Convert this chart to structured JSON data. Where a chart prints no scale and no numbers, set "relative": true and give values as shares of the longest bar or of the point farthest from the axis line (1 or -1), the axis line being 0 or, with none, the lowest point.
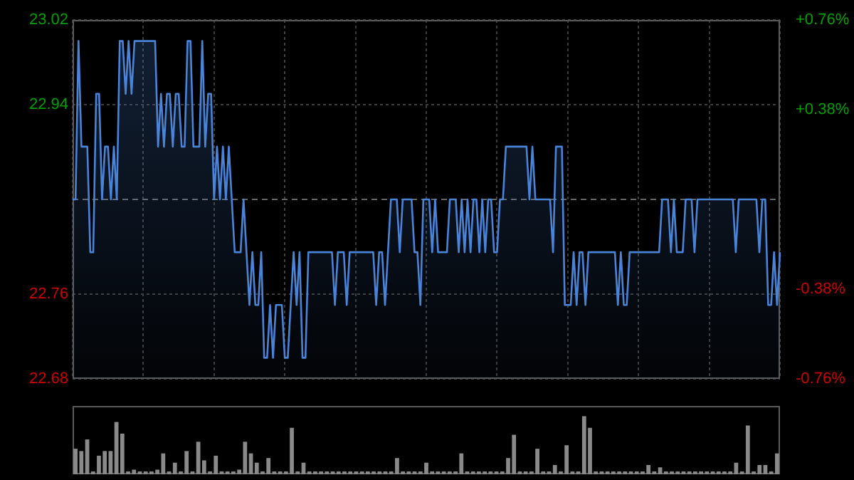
{
  "chart_data": [
    {
      "type": "area",
      "categories": [
        null,
        null,
        null,
        null,
        null,
        null,
        null,
        null,
        null,
        null,
        null,
        null,
        null,
        null,
        null,
        null,
        null,
        null,
        null,
        null,
        null,
        null,
        null,
        null,
        null,
        null,
        null,
        null,
        null,
        null,
        null,
        null,
        null,
        null,
        null,
        null,
        null,
        null,
        null,
        null,
        null,
        null,
        null,
        null,
        null,
        null,
        null,
        null,
        null,
        null,
        null,
        null,
        null,
        null,
        null,
        null,
        null,
        null,
        null,
        null,
        null,
        null,
        null,
        null,
        null,
        null,
        null,
        null,
        null,
        null,
        null,
        null,
        null,
        null,
        null,
        null,
        null,
        null,
        null,
        null,
        null,
        null,
        null,
        null,
        null,
        null,
        null,
        null,
        null,
        null,
        null,
        null,
        null,
        null,
        null,
        null,
        null,
        null,
        null,
        null,
        null,
        null,
        null,
        null,
        null,
        null,
        null,
        null,
        null,
        null,
        null,
        null,
        null,
        null,
        null,
        null,
        null,
        null,
        null,
        null,
        null,
        null,
        null,
        null,
        null,
        null,
        null,
        null,
        null,
        null,
        null,
        null,
        null,
        null,
        null,
        null,
        null,
        null,
        null,
        null,
        null,
        null,
        null,
        null,
        null,
        null,
        null,
        null,
        null,
        null,
        null,
        null,
        null,
        null,
        null,
        null,
        null,
        null,
        null,
        null,
        null,
        null,
        null,
        null,
        null,
        null,
        null,
        null,
        null,
        null,
        null,
        null,
        null,
        null,
        null,
        null,
        null,
        null,
        null,
        null,
        null,
        null,
        null,
        null,
        null,
        null,
        null,
        null,
        null,
        null,
        null,
        null,
        null,
        null,
        null,
        null,
        null,
        null,
        null,
        null,
        null,
        null,
        null,
        null,
        null,
        null,
        null,
        null,
        null,
        null,
        null,
        null,
        null,
        null,
        null,
        null,
        null,
        null,
        null,
        null,
        null,
        null,
        null,
        null,
        null,
        null,
        null,
        null,
        null,
        null,
        null,
        null,
        null,
        null,
        null,
        null,
        null,
        null,
        null,
        null,
        null
      ],
      "ylim": [
        22.68,
        23.02
      ],
      "yticks": [
        22.68,
        22.76,
        22.94,
        23.02
      ],
      "y2lim": [
        -0.76,
        0.76
      ],
      "y2ticks": [
        {
          "value": -0.76,
          "label": "-0.76%"
        },
        {
          "value": -0.38,
          "label": "-0.38%"
        },
        {
          "value": 0.38,
          "label": "+0.38%"
        },
        {
          "value": 0.76,
          "label": "+0.76%"
        }
      ],
      "grid": true,
      "legend": false,
      "tick_labels": "y",
      "marker": "none",
      "line_style": "solid",
      "ref_lines": [
        {
          "axis": "y",
          "value": 22.85,
          "line_style": "dashed",
          "color": "#666666"
        }
      ],
      "series": [
        {
          "color": "#4a84d8",
          "values": [
            22.85,
            22.85,
            23.0,
            22.9,
            22.9,
            22.9,
            22.8,
            22.8,
            22.95,
            22.95,
            22.85,
            22.9,
            22.9,
            22.85,
            22.9,
            22.85,
            23.0,
            23.0,
            22.95,
            23.0,
            22.95,
            23.0,
            23.0,
            23.0,
            23.0,
            23.0,
            23.0,
            23.0,
            23.0,
            22.9,
            22.95,
            22.9,
            22.95,
            22.95,
            22.9,
            22.95,
            22.95,
            22.9,
            22.9,
            23.0,
            23.0,
            22.9,
            22.9,
            22.9,
            23.0,
            22.9,
            22.95,
            22.95,
            22.85,
            22.9,
            22.85,
            22.9,
            22.85,
            22.9,
            22.85,
            22.8,
            22.8,
            22.8,
            22.85,
            22.8,
            22.75,
            22.8,
            22.75,
            22.75,
            22.8,
            22.7,
            22.7,
            22.75,
            22.7,
            22.75,
            22.75,
            22.75,
            22.7,
            22.7,
            22.75,
            22.8,
            22.75,
            22.8,
            22.7,
            22.7,
            22.8,
            22.8,
            22.8,
            22.8,
            22.8,
            22.8,
            22.8,
            22.8,
            22.8,
            22.75,
            22.8,
            22.8,
            22.8,
            22.75,
            22.8,
            22.8,
            22.8,
            22.8,
            22.8,
            22.8,
            22.8,
            22.8,
            22.8,
            22.75,
            22.8,
            22.8,
            22.75,
            22.8,
            22.85,
            22.85,
            22.85,
            22.8,
            22.85,
            22.85,
            22.85,
            22.85,
            22.8,
            22.8,
            22.75,
            22.85,
            22.85,
            22.85,
            22.8,
            22.85,
            22.8,
            22.8,
            22.8,
            22.8,
            22.85,
            22.85,
            22.85,
            22.8,
            22.85,
            22.8,
            22.85,
            22.8,
            22.85,
            22.85,
            22.8,
            22.85,
            22.8,
            22.85,
            22.85,
            22.8,
            22.8,
            22.85,
            22.85,
            22.9,
            22.9,
            22.9,
            22.9,
            22.9,
            22.9,
            22.9,
            22.9,
            22.85,
            22.9,
            22.85,
            22.85,
            22.85,
            22.85,
            22.85,
            22.85,
            22.8,
            22.9,
            22.9,
            22.9,
            22.75,
            22.75,
            22.75,
            22.8,
            22.75,
            22.8,
            22.8,
            22.75,
            22.8,
            22.8,
            22.8,
            22.8,
            22.8,
            22.8,
            22.8,
            22.8,
            22.8,
            22.8,
            22.75,
            22.8,
            22.75,
            22.75,
            22.8,
            22.8,
            22.8,
            22.8,
            22.8,
            22.8,
            22.8,
            22.8,
            22.8,
            22.8,
            22.8,
            22.85,
            22.85,
            22.85,
            22.8,
            22.85,
            22.8,
            22.8,
            22.8,
            22.85,
            22.85,
            22.85,
            22.8,
            22.85,
            22.85,
            22.85,
            22.85,
            22.85,
            22.85,
            22.85,
            22.85,
            22.85,
            22.85,
            22.85,
            22.85,
            22.85,
            22.8,
            22.85,
            22.85,
            22.85,
            22.85,
            22.85,
            22.85,
            22.85,
            22.8,
            22.85,
            22.85,
            22.75,
            22.75,
            22.8,
            22.75,
            22.8
          ]
        }
      ]
    },
    {
      "type": "bar",
      "relative": true,
      "legend": false,
      "tick_labels": false,
      "grid": false,
      "categories": [
        null,
        null,
        null,
        null,
        null,
        null,
        null,
        null,
        null,
        null,
        null,
        null,
        null,
        null,
        null,
        null,
        null,
        null,
        null,
        null,
        null,
        null,
        null,
        null,
        null,
        null,
        null,
        null,
        null,
        null,
        null,
        null,
        null,
        null,
        null,
        null,
        null,
        null,
        null,
        null,
        null,
        null,
        null,
        null,
        null,
        null,
        null,
        null,
        null,
        null,
        null,
        null,
        null,
        null,
        null,
        null,
        null,
        null,
        null,
        null,
        null,
        null,
        null,
        null,
        null,
        null,
        null,
        null,
        null,
        null,
        null,
        null,
        null,
        null,
        null,
        null,
        null,
        null,
        null,
        null,
        null,
        null,
        null,
        null,
        null,
        null,
        null,
        null,
        null,
        null,
        null,
        null,
        null,
        null,
        null,
        null,
        null,
        null,
        null,
        null,
        null,
        null,
        null,
        null,
        null,
        null,
        null,
        null,
        null,
        null,
        null,
        null,
        null,
        null,
        null,
        null,
        null,
        null,
        null,
        null,
        null
      ],
      "series": [
        {
          "color": "#8a8a8a",
          "values": [
            0.44,
            0.4,
            0.6,
            0.05,
            0.32,
            0.4,
            0.4,
            0.9,
            0.7,
            0.05,
            0.08,
            0.05,
            0.05,
            0.05,
            0.08,
            0.36,
            0.05,
            0.2,
            0.05,
            0.4,
            0.05,
            0.56,
            0.24,
            0.05,
            0.32,
            0.05,
            0.05,
            0.05,
            0.08,
            0.56,
            0.36,
            0.2,
            0.05,
            0.28,
            0.05,
            0.05,
            0.05,
            0.8,
            0.05,
            0.2,
            0.05,
            0.05,
            0.05,
            0.05,
            0.05,
            0.05,
            0.05,
            0.05,
            0.05,
            0.05,
            0.05,
            0.05,
            0.05,
            0.05,
            0.05,
            0.28,
            0.05,
            0.05,
            0.05,
            0.05,
            0.2,
            0.05,
            0.05,
            0.05,
            0.05,
            0.05,
            0.36,
            0.05,
            0.05,
            0.05,
            0.05,
            0.05,
            0.05,
            0.05,
            0.28,
            0.68,
            0.05,
            0.05,
            0.05,
            0.44,
            0.05,
            0.05,
            0.16,
            0.05,
            0.5,
            0.05,
            0.05,
            1,
            0.8,
            0.05,
            0.05,
            0.05,
            0.05,
            0.05,
            0.05,
            0.05,
            0.05,
            0.05,
            0.16,
            0.05,
            0.12,
            0.05,
            0.05,
            0.05,
            0.05,
            0.05,
            0.05,
            0.05,
            0.05,
            0.05,
            0.05,
            0.05,
            0.05,
            0.2,
            0.05,
            0.84,
            0.05,
            0.16,
            0.16,
            0.05,
            0.36
          ]
        }
      ]
    }
  ]
}
